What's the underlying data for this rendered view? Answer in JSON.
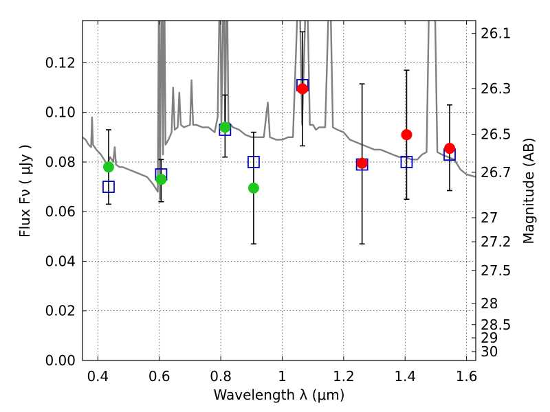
{
  "chart_data": {
    "type": "scatter",
    "title": "",
    "xlabel": "Wavelength  λ (μm)",
    "ylabel": "Flux  Fν  ( μJy )",
    "y2label": "Magnitude (AB)",
    "xlim": [
      0.35,
      1.63
    ],
    "ylim": [
      0.0,
      0.137
    ],
    "grid": true,
    "x_ticks": [
      "0.4",
      "0.6",
      "0.8",
      "1",
      "1.2",
      "1.4",
      "1.6"
    ],
    "y_ticks": [
      "0.00",
      "0.02",
      "0.04",
      "0.06",
      "0.08",
      "0.10",
      "0.12"
    ],
    "y2_ticks": [
      "26.1",
      "26.3",
      "26.5",
      "26.7",
      "27",
      "27.2",
      "27.5",
      "28",
      "28.5",
      "29",
      "30"
    ],
    "series": [
      {
        "marker": "open-square",
        "color": "#0000cc",
        "points": [
          {
            "x": 0.435,
            "y": 0.07
          },
          {
            "x": 0.606,
            "y": 0.075
          },
          {
            "x": 0.814,
            "y": 0.093
          },
          {
            "x": 0.907,
            "y": 0.08
          },
          {
            "x": 1.066,
            "y": 0.111
          },
          {
            "x": 1.26,
            "y": 0.079
          },
          {
            "x": 1.405,
            "y": 0.08
          },
          {
            "x": 1.545,
            "y": 0.083
          }
        ]
      },
      {
        "marker": "filled-circle",
        "color": "#1ec81e",
        "points": [
          {
            "x": 0.435,
            "y": 0.078,
            "yerr_low": 0.063,
            "yerr_high": 0.093
          },
          {
            "x": 0.606,
            "y": 0.073,
            "yerr_low": 0.064,
            "yerr_high": 0.081
          },
          {
            "x": 0.814,
            "y": 0.094,
            "yerr_low": 0.082,
            "yerr_high": 0.107
          },
          {
            "x": 0.907,
            "y": 0.0695,
            "yerr_low": 0.047,
            "yerr_high": 0.092
          }
        ]
      },
      {
        "marker": "filled-circle",
        "color": "#ff0000",
        "points": [
          {
            "x": 1.066,
            "y": 0.1095,
            "yerr_low": 0.0865,
            "yerr_high": 0.1325
          },
          {
            "x": 1.26,
            "y": 0.0795,
            "yerr_low": 0.047,
            "yerr_high": 0.1115
          },
          {
            "x": 1.405,
            "y": 0.091,
            "yerr_low": 0.065,
            "yerr_high": 0.117
          },
          {
            "x": 1.545,
            "y": 0.0855,
            "yerr_low": 0.0685,
            "yerr_high": 0.103
          }
        ]
      },
      {
        "type": "line",
        "color": "#808080",
        "points": [
          [
            0.35,
            0.09
          ],
          [
            0.36,
            0.089
          ],
          [
            0.37,
            0.087
          ],
          [
            0.378,
            0.086
          ],
          [
            0.381,
            0.098
          ],
          [
            0.384,
            0.087
          ],
          [
            0.395,
            0.085
          ],
          [
            0.41,
            0.083
          ],
          [
            0.42,
            0.081
          ],
          [
            0.43,
            0.079
          ],
          [
            0.44,
            0.082
          ],
          [
            0.45,
            0.08
          ],
          [
            0.455,
            0.086
          ],
          [
            0.459,
            0.079
          ],
          [
            0.47,
            0.078
          ],
          [
            0.48,
            0.078
          ],
          [
            0.5,
            0.077
          ],
          [
            0.52,
            0.076
          ],
          [
            0.54,
            0.075
          ],
          [
            0.56,
            0.074
          ],
          [
            0.58,
            0.071
          ],
          [
            0.595,
            0.068
          ],
          [
            0.599,
            0.16
          ],
          [
            0.602,
            0.065
          ],
          [
            0.608,
            0.16
          ],
          [
            0.612,
            0.083
          ],
          [
            0.616,
            0.16
          ],
          [
            0.62,
            0.087
          ],
          [
            0.63,
            0.089
          ],
          [
            0.64,
            0.092
          ],
          [
            0.645,
            0.11
          ],
          [
            0.65,
            0.093
          ],
          [
            0.66,
            0.094
          ],
          [
            0.665,
            0.108
          ],
          [
            0.67,
            0.095
          ],
          [
            0.68,
            0.094
          ],
          [
            0.7,
            0.095
          ],
          [
            0.705,
            0.113
          ],
          [
            0.71,
            0.095
          ],
          [
            0.72,
            0.095
          ],
          [
            0.74,
            0.094
          ],
          [
            0.76,
            0.094
          ],
          [
            0.78,
            0.092
          ],
          [
            0.79,
            0.098
          ],
          [
            0.798,
            0.16
          ],
          [
            0.802,
            0.095
          ],
          [
            0.81,
            0.16
          ],
          [
            0.814,
            0.093
          ],
          [
            0.82,
            0.16
          ],
          [
            0.825,
            0.096
          ],
          [
            0.84,
            0.094
          ],
          [
            0.86,
            0.093
          ],
          [
            0.88,
            0.091
          ],
          [
            0.9,
            0.09
          ],
          [
            0.92,
            0.09
          ],
          [
            0.94,
            0.09
          ],
          [
            0.953,
            0.104
          ],
          [
            0.96,
            0.09
          ],
          [
            0.98,
            0.089
          ],
          [
            1.0,
            0.089
          ],
          [
            1.02,
            0.09
          ],
          [
            1.035,
            0.09
          ],
          [
            1.045,
            0.125
          ],
          [
            1.055,
            0.16
          ],
          [
            1.065,
            0.095
          ],
          [
            1.08,
            0.16
          ],
          [
            1.09,
            0.095
          ],
          [
            1.1,
            0.095
          ],
          [
            1.11,
            0.093
          ],
          [
            1.12,
            0.094
          ],
          [
            1.14,
            0.094
          ],
          [
            1.155,
            0.16
          ],
          [
            1.165,
            0.094
          ],
          [
            1.18,
            0.093
          ],
          [
            1.2,
            0.092
          ],
          [
            1.22,
            0.089
          ],
          [
            1.24,
            0.088
          ],
          [
            1.26,
            0.087
          ],
          [
            1.28,
            0.086
          ],
          [
            1.3,
            0.085
          ],
          [
            1.32,
            0.085
          ],
          [
            1.34,
            0.084
          ],
          [
            1.36,
            0.083
          ],
          [
            1.38,
            0.082
          ],
          [
            1.4,
            0.082
          ],
          [
            1.42,
            0.081
          ],
          [
            1.44,
            0.081
          ],
          [
            1.455,
            0.083
          ],
          [
            1.47,
            0.084
          ],
          [
            1.48,
            0.16
          ],
          [
            1.495,
            0.16
          ],
          [
            1.505,
            0.084
          ],
          [
            1.52,
            0.083
          ],
          [
            1.54,
            0.082
          ],
          [
            1.56,
            0.081
          ],
          [
            1.58,
            0.077
          ],
          [
            1.6,
            0.075
          ],
          [
            1.63,
            0.074
          ]
        ]
      }
    ]
  }
}
